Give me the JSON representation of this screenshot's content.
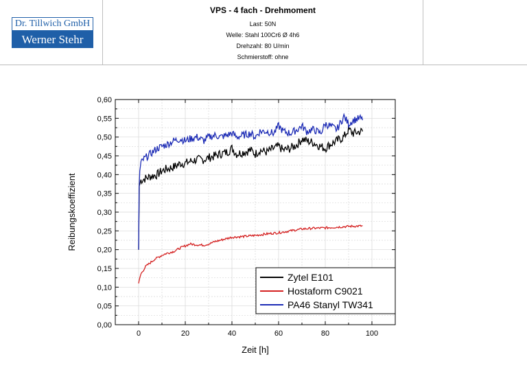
{
  "header": {
    "logo_line1": "Dr. Tillwich GmbH",
    "logo_line2": "Werner Stehr",
    "title": "VPS - 4 fach - Drehmoment",
    "params": [
      "Last: 50N",
      "Welle: Stahl 100Cr6 Ø 4h6",
      "Drehzahl: 80 U/min",
      "Schmierstoff: ohne"
    ]
  },
  "chart_data": {
    "type": "line",
    "xlabel": "Zeit [h]",
    "ylabel": "Reibungskoeffizient",
    "xlim": [
      -10,
      110
    ],
    "ylim": [
      0,
      0.6
    ],
    "xticks": [
      "0",
      "20",
      "40",
      "60",
      "80",
      "100"
    ],
    "yticks": [
      "0,00",
      "0,05",
      "0,10",
      "0,15",
      "0,20",
      "0,25",
      "0,30",
      "0,35",
      "0,40",
      "0,45",
      "0,50",
      "0,55",
      "0,60"
    ],
    "grid": true,
    "legend_position": "bottom-right",
    "series": [
      {
        "name": "Zytel E101",
        "color": "#000000",
        "x": [
          0,
          0.3,
          1,
          3,
          5,
          8,
          10,
          12,
          15,
          18,
          20,
          22,
          25,
          28,
          30,
          33,
          35,
          38,
          40,
          42,
          45,
          48,
          50,
          52,
          55,
          58,
          60,
          62,
          65,
          68,
          70,
          72,
          75,
          78,
          80,
          82,
          85,
          88,
          90,
          92,
          95,
          96
        ],
        "y": [
          0.2,
          0.37,
          0.385,
          0.39,
          0.395,
          0.4,
          0.41,
          0.415,
          0.42,
          0.43,
          0.43,
          0.435,
          0.44,
          0.44,
          0.445,
          0.45,
          0.455,
          0.46,
          0.47,
          0.455,
          0.46,
          0.465,
          0.455,
          0.465,
          0.46,
          0.47,
          0.475,
          0.465,
          0.47,
          0.48,
          0.495,
          0.49,
          0.485,
          0.475,
          0.47,
          0.48,
          0.49,
          0.5,
          0.52,
          0.51,
          0.515,
          0.515
        ]
      },
      {
        "name": "Hostaform C9021",
        "color": "#d42020",
        "x": [
          0,
          0.5,
          1,
          2,
          3,
          5,
          7,
          10,
          12,
          15,
          18,
          20,
          22,
          25,
          28,
          30,
          33,
          35,
          38,
          40,
          45,
          50,
          55,
          60,
          65,
          70,
          75,
          80,
          85,
          90,
          95,
          96
        ],
        "y": [
          0.11,
          0.125,
          0.135,
          0.145,
          0.155,
          0.165,
          0.175,
          0.185,
          0.19,
          0.195,
          0.205,
          0.21,
          0.215,
          0.213,
          0.212,
          0.215,
          0.222,
          0.225,
          0.23,
          0.233,
          0.235,
          0.238,
          0.242,
          0.245,
          0.25,
          0.255,
          0.257,
          0.258,
          0.26,
          0.262,
          0.263,
          0.263
        ]
      },
      {
        "name": "PA46 Stanyl TW341",
        "color": "#1c2bb5",
        "x": [
          0,
          0.2,
          0.5,
          1,
          2,
          3,
          5,
          8,
          10,
          12,
          15,
          18,
          20,
          22,
          25,
          28,
          30,
          33,
          35,
          38,
          40,
          42,
          45,
          48,
          50,
          52,
          55,
          58,
          60,
          62,
          65,
          68,
          70,
          72,
          75,
          78,
          80,
          82,
          85,
          88,
          90,
          92,
          95,
          96
        ],
        "y": [
          0.2,
          0.36,
          0.41,
          0.43,
          0.44,
          0.445,
          0.455,
          0.47,
          0.475,
          0.48,
          0.49,
          0.495,
          0.49,
          0.495,
          0.5,
          0.49,
          0.5,
          0.505,
          0.5,
          0.505,
          0.51,
          0.5,
          0.505,
          0.51,
          0.5,
          0.515,
          0.515,
          0.51,
          0.53,
          0.515,
          0.51,
          0.52,
          0.53,
          0.515,
          0.52,
          0.51,
          0.535,
          0.53,
          0.52,
          0.555,
          0.535,
          0.545,
          0.55,
          0.545
        ]
      }
    ]
  }
}
